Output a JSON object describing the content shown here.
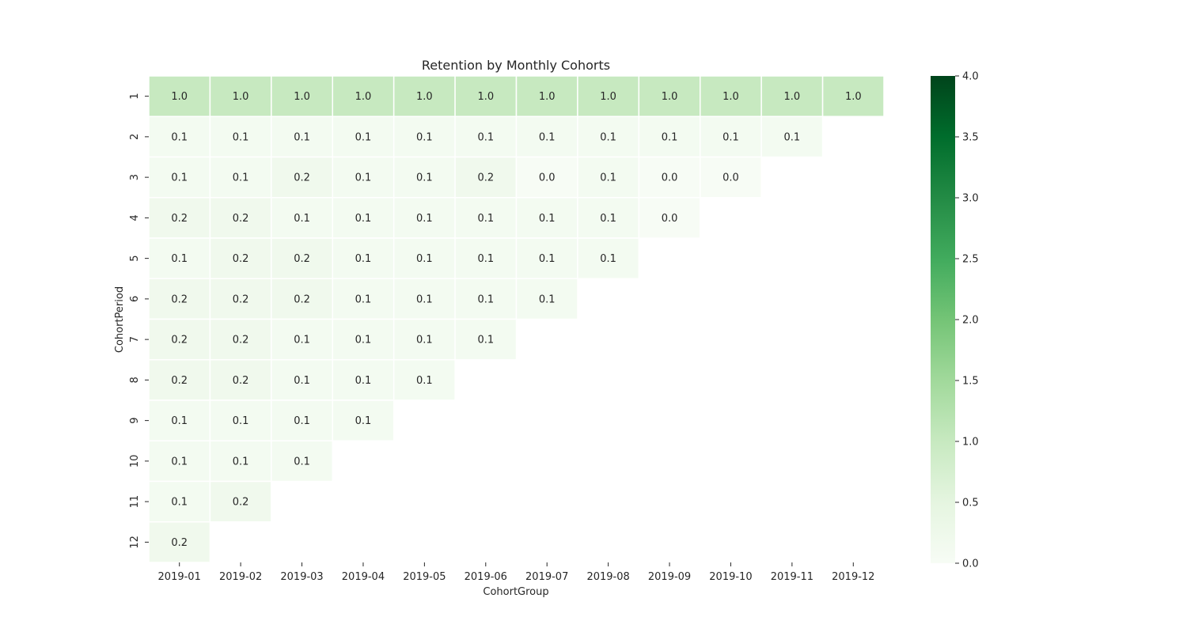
{
  "chart_data": {
    "type": "heatmap",
    "title": "Retention by Monthly Cohorts",
    "xlabel": "CohortGroup",
    "ylabel": "CohortPeriod",
    "x_categories": [
      "2019-01",
      "2019-02",
      "2019-03",
      "2019-04",
      "2019-05",
      "2019-06",
      "2019-07",
      "2019-08",
      "2019-09",
      "2019-10",
      "2019-11",
      "2019-12"
    ],
    "y_categories": [
      "1",
      "2",
      "3",
      "4",
      "5",
      "6",
      "7",
      "8",
      "9",
      "10",
      "11",
      "12"
    ],
    "values": [
      [
        1.0,
        1.0,
        1.0,
        1.0,
        1.0,
        1.0,
        1.0,
        1.0,
        1.0,
        1.0,
        1.0,
        1.0
      ],
      [
        0.1,
        0.1,
        0.1,
        0.1,
        0.1,
        0.1,
        0.1,
        0.1,
        0.1,
        0.1,
        0.1,
        null
      ],
      [
        0.1,
        0.1,
        0.2,
        0.1,
        0.1,
        0.2,
        0.0,
        0.1,
        0.0,
        0.0,
        null,
        null
      ],
      [
        0.2,
        0.2,
        0.1,
        0.1,
        0.1,
        0.1,
        0.1,
        0.1,
        0.0,
        null,
        null,
        null
      ],
      [
        0.1,
        0.2,
        0.2,
        0.1,
        0.1,
        0.1,
        0.1,
        0.1,
        null,
        null,
        null,
        null
      ],
      [
        0.2,
        0.2,
        0.2,
        0.1,
        0.1,
        0.1,
        0.1,
        null,
        null,
        null,
        null,
        null
      ],
      [
        0.2,
        0.2,
        0.1,
        0.1,
        0.1,
        0.1,
        null,
        null,
        null,
        null,
        null,
        null
      ],
      [
        0.2,
        0.2,
        0.1,
        0.1,
        0.1,
        null,
        null,
        null,
        null,
        null,
        null,
        null
      ],
      [
        0.1,
        0.1,
        0.1,
        0.1,
        null,
        null,
        null,
        null,
        null,
        null,
        null,
        null
      ],
      [
        0.1,
        0.1,
        0.1,
        null,
        null,
        null,
        null,
        null,
        null,
        null,
        null,
        null
      ],
      [
        0.1,
        0.2,
        null,
        null,
        null,
        null,
        null,
        null,
        null,
        null,
        null,
        null
      ],
      [
        0.2,
        null,
        null,
        null,
        null,
        null,
        null,
        null,
        null,
        null,
        null,
        null
      ]
    ],
    "colorbar": {
      "min": 0.0,
      "max": 4.0,
      "ticks": [
        "0.0",
        "0.5",
        "1.0",
        "1.5",
        "2.0",
        "2.5",
        "3.0",
        "3.5",
        "4.0"
      ],
      "colormap": "Greens"
    },
    "grid": false,
    "cell_border_color": "#ffffff"
  }
}
